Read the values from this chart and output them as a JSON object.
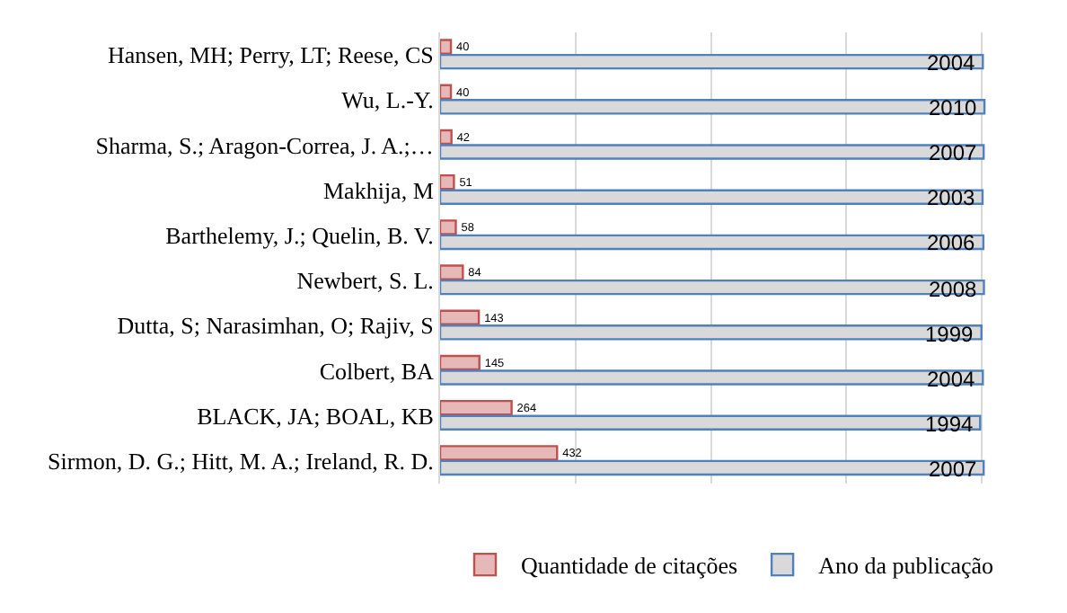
{
  "chart_data": {
    "type": "bar",
    "orientation": "horizontal",
    "categories": [
      "Hansen, MH; Perry, LT; Reese, CS",
      "Wu, L.-Y.",
      "Sharma, S.; Aragon-Correa, J. A.;…",
      "Makhija, M",
      "Barthelemy, J.; Quelin, B. V.",
      "Newbert, S. L.",
      "Dutta, S; Narasimhan, O; Rajiv, S",
      "Colbert, BA",
      "BLACK, JA; BOAL, KB",
      "Sirmon, D. G.; Hitt, M. A.; Ireland, R. D."
    ],
    "series": [
      {
        "name": "Quantidade de citações",
        "color": "#e6b9b8",
        "values": [
          40,
          40,
          42,
          51,
          58,
          84,
          143,
          145,
          264,
          432
        ]
      },
      {
        "name": "Ano da publicação",
        "color": "#d9d9d9",
        "values": [
          2004,
          2010,
          2007,
          2003,
          2006,
          2008,
          1999,
          2004,
          1994,
          2007
        ]
      }
    ],
    "tick_labels": "y",
    "grid": "x",
    "legend": "bottom",
    "data_labels": true
  }
}
